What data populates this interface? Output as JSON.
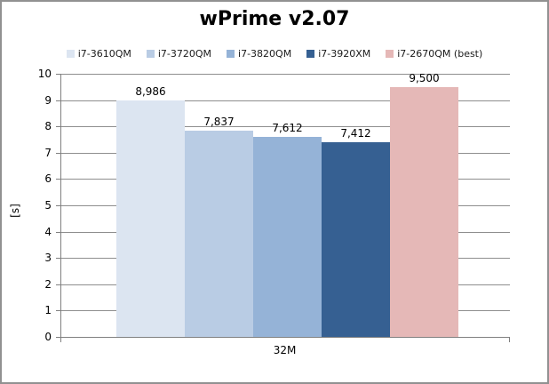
{
  "chart_data": {
    "type": "bar",
    "title": "wPrime v2.07",
    "ylabel": "[s]",
    "categories": [
      "32M"
    ],
    "ylim": [
      0,
      10
    ],
    "yticks": [
      0,
      1,
      2,
      3,
      4,
      5,
      6,
      7,
      8,
      9,
      10
    ],
    "grid": true,
    "legend_position": "top",
    "series": [
      {
        "name": "i7-3610QM",
        "value": 8.986,
        "label": "8,986",
        "color": "#dce5f1"
      },
      {
        "name": "i7-3720QM",
        "value": 7.837,
        "label": "7,837",
        "color": "#b9cce4"
      },
      {
        "name": "i7-3820QM",
        "value": 7.612,
        "label": "7,612",
        "color": "#95b3d7"
      },
      {
        "name": "i7-3920XM",
        "value": 7.412,
        "label": "7,412",
        "color": "#366092"
      },
      {
        "name": "i7-2670QM (best)",
        "value": 9.5,
        "label": "9,500",
        "color": "#e5b8b7"
      }
    ],
    "colors": {
      "gridline": "#8e8e8e",
      "axis": "#808080",
      "border": "#919191",
      "text": "#000000"
    }
  }
}
